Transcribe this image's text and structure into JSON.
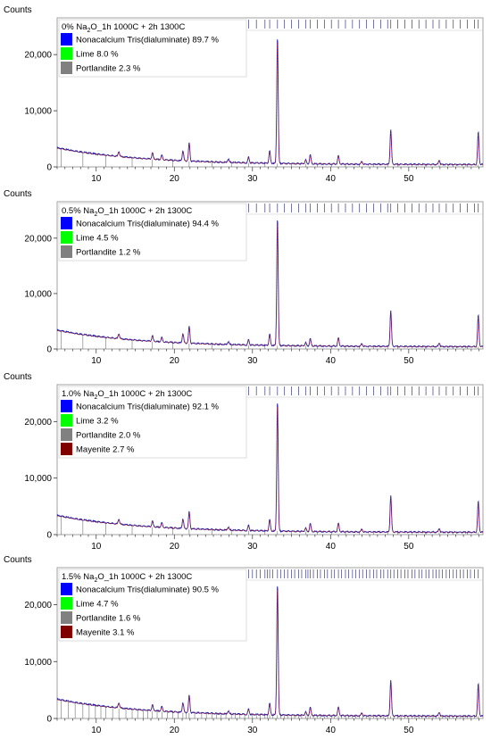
{
  "chart_data": [
    {
      "type": "line",
      "title_prefix": "0% Na",
      "title_sub": "2",
      "title_suffix": "O_1h  1000C + 2h 1300C",
      "ylabel": "Counts",
      "xlim": [
        5,
        59.5
      ],
      "ylim": [
        0,
        24000
      ],
      "xticks": [
        10,
        20,
        30,
        40,
        50
      ],
      "yticks": [
        {
          "v": 0,
          "label": "0"
        },
        {
          "v": 10000,
          "label": "10,000"
        },
        {
          "v": 20000,
          "label": "20,000"
        }
      ],
      "legend": [
        {
          "label": "Nonacalcium Tris(dialuminate) 89.7 %",
          "color": "#0000ff"
        },
        {
          "label": "Lime 8.0 %",
          "color": "#00ff00"
        },
        {
          "label": "Portlandite 2.3 %",
          "color": "#808080"
        }
      ],
      "peaks": [
        [
          12.9,
          900
        ],
        [
          17.2,
          1100
        ],
        [
          18.4,
          800
        ],
        [
          21.1,
          1800
        ],
        [
          21.9,
          3200
        ],
        [
          26.9,
          600
        ],
        [
          29.5,
          1000
        ],
        [
          32.2,
          2200
        ],
        [
          33.2,
          22500
        ],
        [
          36.8,
          700
        ],
        [
          37.4,
          1600
        ],
        [
          41.0,
          1500
        ],
        [
          44.0,
          500
        ],
        [
          47.7,
          6200
        ],
        [
          53.9,
          800
        ],
        [
          58.9,
          5700
        ]
      ],
      "markers": [
        5.5,
        6.8,
        8.3,
        9.9,
        11.2,
        12.9,
        14.6,
        16.0,
        17.2,
        18.4,
        19.8,
        21.1,
        21.9,
        23.5,
        24.8,
        26.0,
        27.3,
        28.4,
        29.5,
        30.5,
        31.6,
        32.2,
        33.2,
        34.1,
        35.0,
        35.9,
        36.8,
        37.4,
        38.3,
        39.2,
        40.1,
        41.0,
        41.9,
        42.8,
        43.7,
        44.6,
        45.5,
        46.4,
        47.3,
        47.7,
        48.6,
        49.5,
        50.4,
        51.3,
        52.2,
        53.1,
        53.9,
        54.8,
        55.7,
        56.6,
        57.5,
        58.4,
        58.9
      ]
    },
    {
      "type": "line",
      "title_prefix": "0.5% Na",
      "title_sub": "2",
      "title_suffix": "O_1h  1000C + 2h 1300C",
      "ylabel": "Counts",
      "xlim": [
        5,
        59.5
      ],
      "ylim": [
        0,
        24000
      ],
      "xticks": [
        10,
        20,
        30,
        40,
        50
      ],
      "yticks": [
        {
          "v": 0,
          "label": "0"
        },
        {
          "v": 10000,
          "label": "10,000"
        },
        {
          "v": 20000,
          "label": "20,000"
        }
      ],
      "legend": [
        {
          "label": "Nonacalcium Tris(dialuminate) 94.4 %",
          "color": "#0000ff"
        },
        {
          "label": "Lime 4.5 %",
          "color": "#00ff00"
        },
        {
          "label": "Portlandite 1.2 %",
          "color": "#808080"
        }
      ],
      "peaks": [
        [
          12.9,
          900
        ],
        [
          17.2,
          1000
        ],
        [
          18.4,
          800
        ],
        [
          21.1,
          1700
        ],
        [
          21.9,
          3000
        ],
        [
          26.9,
          500
        ],
        [
          29.5,
          900
        ],
        [
          32.2,
          2000
        ],
        [
          33.2,
          23000
        ],
        [
          36.8,
          600
        ],
        [
          37.4,
          1300
        ],
        [
          41.0,
          1500
        ],
        [
          44.0,
          500
        ],
        [
          47.7,
          6500
        ],
        [
          53.9,
          700
        ],
        [
          58.9,
          5600
        ]
      ],
      "markers": [
        5.5,
        6.8,
        8.3,
        9.9,
        11.2,
        12.9,
        14.6,
        16.0,
        17.2,
        18.4,
        19.8,
        21.1,
        21.9,
        23.5,
        24.8,
        26.0,
        27.3,
        28.4,
        29.5,
        30.5,
        31.6,
        32.2,
        33.2,
        34.1,
        35.0,
        35.9,
        36.8,
        37.4,
        38.3,
        39.2,
        40.1,
        41.0,
        41.9,
        42.8,
        43.7,
        44.6,
        45.5,
        46.4,
        47.3,
        47.7,
        48.6,
        49.5,
        50.4,
        51.3,
        52.2,
        53.1,
        53.9,
        54.8,
        55.7,
        56.6,
        57.5,
        58.4,
        58.9
      ]
    },
    {
      "type": "line",
      "title_prefix": "1.0% Na",
      "title_sub": "2",
      "title_suffix": "O_1h  1000C + 2h 1300C",
      "ylabel": "Counts",
      "xlim": [
        5,
        59.5
      ],
      "ylim": [
        0,
        24000
      ],
      "xticks": [
        10,
        20,
        30,
        40,
        50
      ],
      "yticks": [
        {
          "v": 0,
          "label": "0"
        },
        {
          "v": 10000,
          "label": "10,000"
        },
        {
          "v": 20000,
          "label": "20,000"
        }
      ],
      "legend": [
        {
          "label": "Nonacalcium Tris(dialuminate) 92.1 %",
          "color": "#0000ff"
        },
        {
          "label": "Lime 3.2 %",
          "color": "#00ff00"
        },
        {
          "label": "Portlandite 2.0 %",
          "color": "#808080"
        },
        {
          "label": "Mayenite 2.7 %",
          "color": "#800000"
        }
      ],
      "peaks": [
        [
          12.9,
          900
        ],
        [
          17.2,
          1000
        ],
        [
          18.4,
          800
        ],
        [
          21.1,
          1700
        ],
        [
          21.9,
          3000
        ],
        [
          26.9,
          500
        ],
        [
          29.5,
          900
        ],
        [
          32.2,
          2000
        ],
        [
          33.2,
          23000
        ],
        [
          36.8,
          600
        ],
        [
          37.4,
          1400
        ],
        [
          41.0,
          1500
        ],
        [
          44.0,
          500
        ],
        [
          47.7,
          6500
        ],
        [
          53.9,
          700
        ],
        [
          58.9,
          5400
        ]
      ],
      "markers": [
        5.5,
        6.8,
        8.3,
        9.9,
        11.2,
        12.9,
        14.6,
        16.0,
        17.2,
        18.4,
        19.8,
        21.1,
        21.9,
        23.5,
        24.8,
        26.0,
        27.3,
        28.4,
        29.5,
        30.5,
        31.6,
        32.2,
        33.2,
        34.1,
        35.0,
        35.9,
        36.8,
        37.4,
        38.3,
        39.2,
        40.1,
        41.0,
        41.9,
        42.8,
        43.7,
        44.6,
        45.5,
        46.4,
        47.3,
        47.7,
        48.6,
        49.5,
        50.4,
        51.3,
        52.2,
        53.1,
        53.9,
        54.8,
        55.7,
        56.6,
        57.5,
        58.4,
        58.9
      ]
    },
    {
      "type": "line",
      "title_prefix": "1.5% Na",
      "title_sub": "2",
      "title_suffix": "O_1h  1000C + 2h 1300C",
      "ylabel": "Counts",
      "xlim": [
        5,
        59.5
      ],
      "ylim": [
        0,
        24000
      ],
      "xticks": [
        10,
        20,
        30,
        40,
        50
      ],
      "yticks": [
        {
          "v": 0,
          "label": "0"
        },
        {
          "v": 10000,
          "label": "10,000"
        },
        {
          "v": 20000,
          "label": "20,000"
        }
      ],
      "legend": [
        {
          "label": "Nonacalcium Tris(dialuminate) 90.5 %",
          "color": "#0000ff"
        },
        {
          "label": "Lime 4.7 %",
          "color": "#00ff00"
        },
        {
          "label": "Portlandite 1.6 %",
          "color": "#808080"
        },
        {
          "label": "Mayenite 3.1 %",
          "color": "#800000"
        }
      ],
      "peaks": [
        [
          12.9,
          900
        ],
        [
          17.2,
          1000
        ],
        [
          18.4,
          800
        ],
        [
          21.1,
          1700
        ],
        [
          21.9,
          3000
        ],
        [
          26.9,
          500
        ],
        [
          29.5,
          900
        ],
        [
          32.2,
          2000
        ],
        [
          33.2,
          23000
        ],
        [
          36.8,
          600
        ],
        [
          37.4,
          1400
        ],
        [
          41.0,
          1500
        ],
        [
          44.0,
          500
        ],
        [
          47.7,
          6300
        ],
        [
          53.9,
          700
        ],
        [
          58.9,
          5600
        ]
      ],
      "markers": [
        5.5,
        6.4,
        7.3,
        8.3,
        9.1,
        9.9,
        10.6,
        11.2,
        12.1,
        12.9,
        13.8,
        14.6,
        15.3,
        16.0,
        16.6,
        17.2,
        17.8,
        18.4,
        19.1,
        19.8,
        20.5,
        21.1,
        21.5,
        21.9,
        22.6,
        23.5,
        24.1,
        24.8,
        25.4,
        26.0,
        26.6,
        27.3,
        27.8,
        28.4,
        29.0,
        29.5,
        30.0,
        30.5,
        31.0,
        31.6,
        31.9,
        32.2,
        32.6,
        33.2,
        33.6,
        34.1,
        34.5,
        35.0,
        35.4,
        35.9,
        36.3,
        36.8,
        37.1,
        37.4,
        37.8,
        38.3,
        38.7,
        39.2,
        39.6,
        40.1,
        40.5,
        41.0,
        41.4,
        41.9,
        42.3,
        42.8,
        43.2,
        43.7,
        44.1,
        44.6,
        45.0,
        45.5,
        45.9,
        46.4,
        46.8,
        47.3,
        47.7,
        48.1,
        48.6,
        49.0,
        49.5,
        49.9,
        50.4,
        50.8,
        51.3,
        51.7,
        52.2,
        52.6,
        53.1,
        53.5,
        53.9,
        54.3,
        54.8,
        55.2,
        55.7,
        56.1,
        56.6,
        57.0,
        57.5,
        57.9,
        58.4,
        58.9
      ]
    }
  ]
}
